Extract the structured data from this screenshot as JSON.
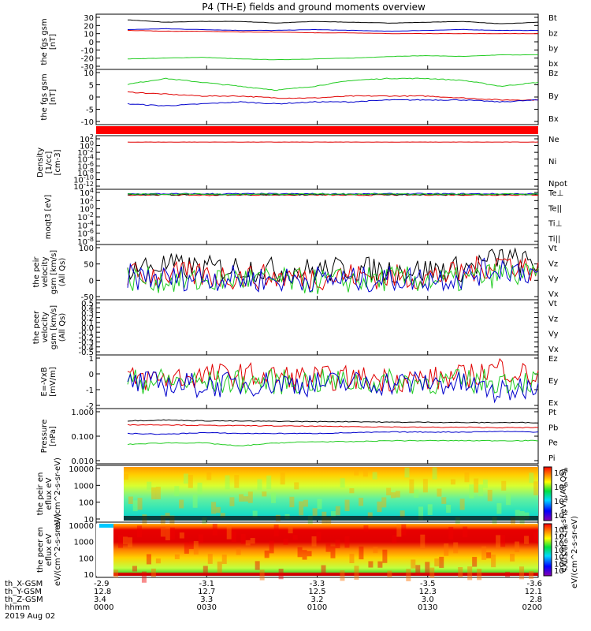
{
  "title": "P4 (TH-E) fields and ground moments overview",
  "date_label": "2019 Aug 02",
  "orbit": {
    "row_labels": [
      "th_X-GSM",
      "th_Y-GSM",
      "th_Z-GSM",
      "hhmm"
    ],
    "columns": [
      {
        "x": "-2.9",
        "y": "12.8",
        "z": "3.4",
        "t": "0000"
      },
      {
        "x": "-3.1",
        "y": "12.7",
        "z": "3.3",
        "t": "0030"
      },
      {
        "x": "-3.3",
        "y": "12.5",
        "z": "3.2",
        "t": "0100"
      },
      {
        "x": "-3.5",
        "y": "12.3",
        "z": "3.0",
        "t": "0130"
      },
      {
        "x": "-3.6",
        "y": "12.1",
        "z": "2.8",
        "t": "0200"
      }
    ]
  },
  "colorbar_labels": {
    "peir": "eV/(cm^2-s-sr-eV) (All Qs)",
    "peer": "eV/(cm^2-s-sr-eV)",
    "peir_ticks": [
      "10^8",
      "10^6",
      "10^4",
      "10^2"
    ],
    "peer_ticks": [
      "10^8",
      "10^7",
      "10^6",
      "10^5",
      "10^4",
      "10^3",
      "10^2"
    ]
  },
  "colors": {
    "black": "#000000",
    "red": "#e00000",
    "green": "#22cc22",
    "blue": "#0000cc"
  },
  "chart_data": [
    {
      "type": "line",
      "ylabel": "the fgs gsm [nT]",
      "ylim": [
        -30,
        30
      ],
      "ticks": [
        "30",
        "20",
        "10",
        "0",
        "-10",
        "-20",
        "-30"
      ],
      "series": [
        {
          "name": "Bt",
          "color": "#000000",
          "values": [
            27,
            24,
            25,
            25,
            23,
            25,
            24,
            23,
            24,
            25,
            22,
            24
          ]
        },
        {
          "name": "bz",
          "color": "#e00000",
          "values": [
            14,
            13,
            13,
            12,
            12,
            11,
            11,
            10,
            10,
            10,
            10,
            10
          ]
        },
        {
          "name": "by",
          "color": "#22cc22",
          "values": [
            -21,
            -20,
            -19,
            -21,
            -22,
            -21,
            -20,
            -18,
            -17,
            -18,
            -16,
            -16
          ]
        },
        {
          "name": "bx",
          "color": "#0000cc",
          "values": [
            15,
            16,
            15,
            14,
            14,
            15,
            14,
            13,
            14,
            15,
            14,
            14
          ]
        }
      ]
    },
    {
      "type": "line",
      "ylabel": "the fgs gsm [nT]",
      "ylim": [
        -15,
        10
      ],
      "ticks": [
        "10",
        "5",
        "0",
        "-5",
        "-10"
      ],
      "series": [
        {
          "name": "Bz",
          "color": "#e00000",
          "values": [
            0,
            -1,
            -2,
            -2,
            -3,
            -3,
            -2,
            -2,
            -2,
            -3,
            -4,
            -4
          ]
        },
        {
          "name": "By",
          "color": "#22cc22",
          "values": [
            4,
            7,
            5,
            3,
            1,
            3,
            6,
            7,
            7,
            6,
            3,
            5
          ]
        },
        {
          "name": "Bx",
          "color": "#0000cc",
          "values": [
            -6,
            -7,
            -6,
            -5,
            -6,
            -5,
            -5,
            -4,
            -4,
            -4,
            -5,
            -4
          ]
        }
      ]
    },
    {
      "type": "line",
      "ylabel": "Density [1/cc] [cm-3]",
      "yscale": "log",
      "ylim": [
        -14,
        2
      ],
      "ticks": [
        "10^2",
        "10^0",
        "10^-2",
        "10^-4",
        "10^-6",
        "10^-8",
        "10^-10",
        "10^-12"
      ],
      "series": [
        {
          "name": "Ne",
          "color": "#e00000",
          "values": [
            0.9,
            0.9,
            0.9,
            0.9,
            0.9,
            0.9,
            0.9,
            0.9,
            0.9,
            0.9,
            0.9,
            0.9
          ]
        },
        {
          "name": "Ni",
          "color": "#000000",
          "values": []
        },
        {
          "name": "Npot",
          "color": "#0000cc",
          "values": []
        }
      ]
    },
    {
      "type": "line",
      "ylabel": "moqt3 [eV]",
      "yscale": "log",
      "ylim": [
        -10,
        4
      ],
      "ticks": [
        "10^4",
        "10^2",
        "10^0",
        "10^-2",
        "10^-4",
        "10^-6",
        "10^-8"
      ],
      "series": [
        {
          "name": "Te⊥",
          "color": "#e00000",
          "values": [
            3.3,
            3.3,
            3.2,
            3.3,
            3.3,
            3.3,
            3.2,
            3.3,
            3.3,
            3.3,
            3.3,
            3.3
          ]
        },
        {
          "name": "Te||",
          "color": "#000000",
          "values": [
            3.4,
            3.4,
            3.4,
            3.4,
            3.4,
            3.4,
            3.4,
            3.4,
            3.4,
            3.4,
            3.4,
            3.4
          ]
        },
        {
          "name": "Ti⊥",
          "color": "#0000cc",
          "values": [
            3.6,
            3.6,
            3.6,
            3.6,
            3.6,
            3.6,
            3.6,
            3.6,
            3.6,
            3.6,
            3.6,
            3.6
          ]
        },
        {
          "name": "Ti||",
          "color": "#22cc22",
          "values": [
            3.5,
            3.5,
            3.5,
            3.5,
            3.5,
            3.5,
            3.5,
            3.5,
            3.5,
            3.5,
            3.5,
            3.5
          ]
        }
      ]
    },
    {
      "type": "line",
      "ylabel": "the peir velocity gsm [km/s] (All Qs)",
      "ylim": [
        -50,
        100
      ],
      "ticks": [
        "100",
        "50",
        "0",
        "-50"
      ],
      "series": [
        {
          "name": "Vt",
          "color": "#000000",
          "values": [
            40,
            45,
            35,
            40,
            30,
            30,
            35,
            30,
            30,
            35,
            70,
            45
          ]
        },
        {
          "name": "Vz",
          "color": "#e00000",
          "values": [
            15,
            20,
            15,
            10,
            10,
            10,
            15,
            10,
            10,
            20,
            60,
            30
          ]
        },
        {
          "name": "Vy",
          "color": "#22cc22",
          "values": [
            5,
            0,
            -5,
            5,
            0,
            -5,
            0,
            5,
            0,
            0,
            20,
            10
          ]
        },
        {
          "name": "Vx",
          "color": "#0000cc",
          "values": [
            10,
            5,
            10,
            5,
            0,
            5,
            0,
            5,
            5,
            10,
            40,
            20
          ]
        }
      ]
    },
    {
      "type": "line",
      "ylabel": "the peer velocity gsm [km/s] (All Qs)",
      "ylim": [
        -0.5,
        0.5
      ],
      "ticks": [
        "0.5",
        "0.4",
        "0.3",
        "0.2",
        "0.1",
        "0.0",
        "-0.1",
        "-0.2",
        "-0.3",
        "-0.4",
        "-0.5"
      ],
      "series": [
        {
          "name": "Vt",
          "color": "#000000",
          "values": []
        },
        {
          "name": "Vz",
          "color": "#e00000",
          "values": []
        },
        {
          "name": "Vy",
          "color": "#22cc22",
          "values": []
        },
        {
          "name": "Vx",
          "color": "#0000cc",
          "values": []
        }
      ]
    },
    {
      "type": "line",
      "ylabel": "E=-VxB [mV/m]",
      "ylim": [
        -2,
        2
      ],
      "ticks": [
        "1",
        "0",
        "-1",
        "-2"
      ],
      "series": [
        {
          "name": "Ez",
          "color": "#e00000",
          "values": [
            0.2,
            0.3,
            0.5,
            0.6,
            0.4,
            0.3,
            0.3,
            0.2,
            0.2,
            0.4,
            1.2,
            0.3
          ]
        },
        {
          "name": "Ey",
          "color": "#22cc22",
          "values": [
            0.0,
            0.1,
            -0.1,
            0.0,
            0.0,
            0.0,
            0.0,
            0.0,
            0.0,
            0.0,
            0.1,
            0.0
          ]
        },
        {
          "name": "Ex",
          "color": "#0000cc",
          "values": [
            -0.1,
            -0.2,
            -0.3,
            -0.2,
            -0.1,
            -0.2,
            -0.1,
            -0.1,
            -0.1,
            -0.2,
            -1.0,
            -0.1
          ]
        }
      ]
    },
    {
      "type": "line",
      "ylabel": "Pressure [nPa]",
      "yscale": "log",
      "ylim": [
        -2.5,
        0.2
      ],
      "ticks": [
        "1.000",
        "0.100",
        "0.010"
      ],
      "series": [
        {
          "name": "Pt",
          "color": "#000000",
          "values": [
            0.5,
            0.55,
            0.5,
            0.48,
            0.47,
            0.45,
            0.45,
            0.42,
            0.42,
            0.4,
            0.4,
            0.4
          ]
        },
        {
          "name": "Pb",
          "color": "#e00000",
          "values": [
            0.3,
            0.3,
            0.28,
            0.27,
            0.26,
            0.25,
            0.24,
            0.23,
            0.22,
            0.22,
            0.21,
            0.21
          ]
        },
        {
          "name": "Pe",
          "color": "#22cc22",
          "values": [
            0.025,
            0.03,
            0.03,
            0.02,
            0.03,
            0.035,
            0.035,
            0.04,
            0.04,
            0.04,
            0.04,
            0.04
          ]
        },
        {
          "name": "Pi",
          "color": "#0000cc",
          "values": [
            0.1,
            0.09,
            0.11,
            0.1,
            0.1,
            0.1,
            0.11,
            0.12,
            0.12,
            0.12,
            0.13,
            0.12
          ]
        }
      ]
    },
    {
      "type": "heatmap",
      "ylabel": "the peir en eflux eV eV/(cm^2-s-sr-eV)",
      "yscale": "log",
      "ylim": [
        5,
        30000
      ],
      "ticks": [
        "10000",
        "1000",
        "100",
        "10"
      ]
    },
    {
      "type": "heatmap",
      "ylabel": "the peer en eflux eV eV/(cm^2-s-sr-eV)",
      "yscale": "log",
      "ylim": [
        5,
        15000
      ],
      "ticks": [
        "10000",
        "1000",
        "100",
        "10"
      ]
    }
  ]
}
